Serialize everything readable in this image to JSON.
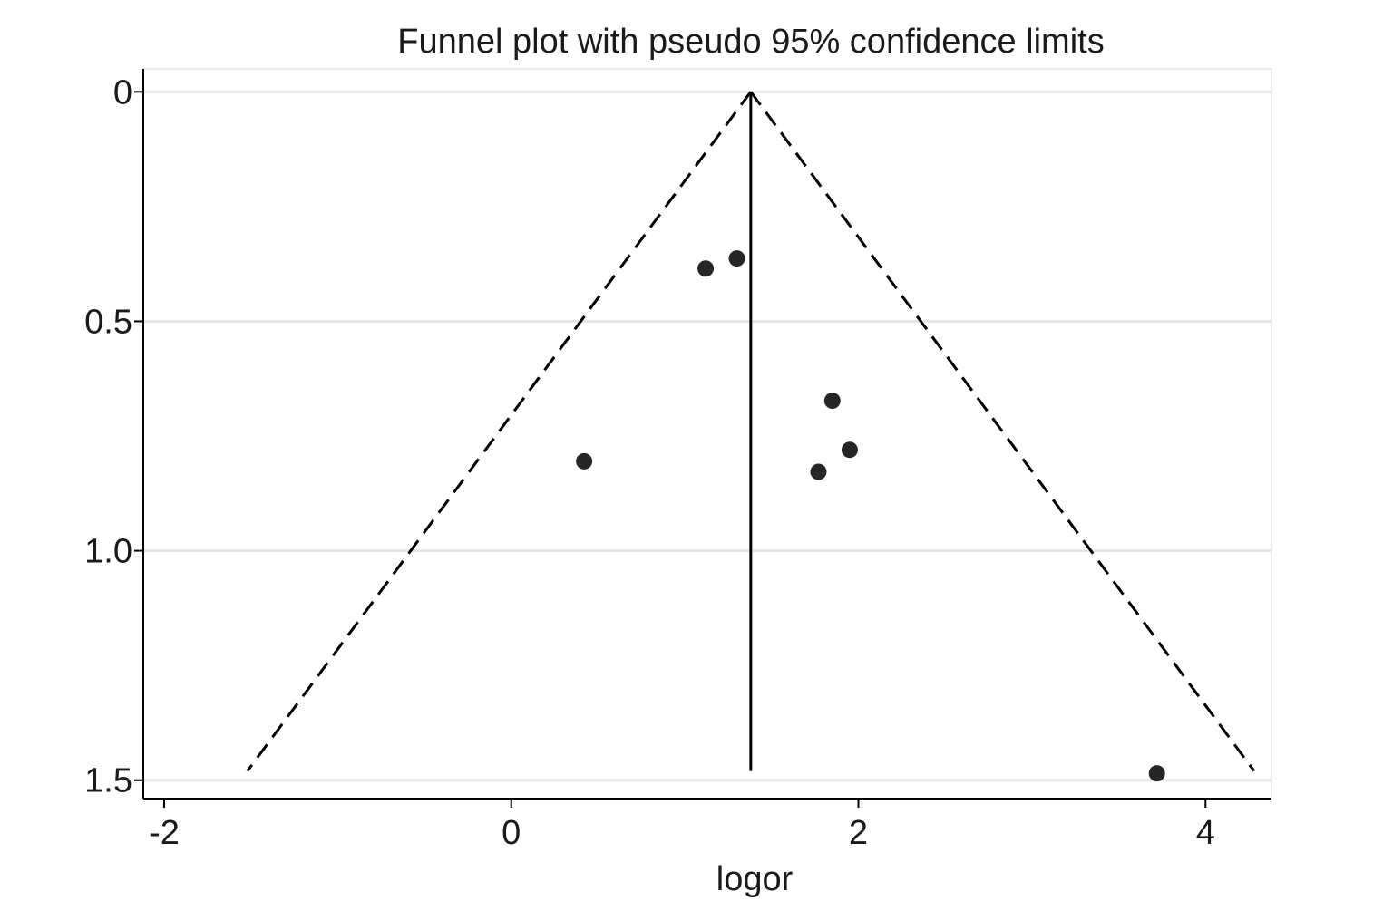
{
  "chart_data": {
    "type": "scatter",
    "title": "Funnel plot with pseudo 95% confidence limits",
    "xlabel": "logor",
    "ylabel": "",
    "xlim": [
      -2.12,
      4.38
    ],
    "ylim": [
      -0.05,
      1.54
    ],
    "y_reversed": true,
    "x_ticks": [
      -2,
      0,
      2,
      4
    ],
    "x_tick_labels": [
      "-2",
      "0",
      "2",
      "4"
    ],
    "y_ticks": [
      0,
      0.5,
      1.0,
      1.5
    ],
    "y_tick_labels": [
      "0",
      "0.5",
      "1.0",
      "1.5"
    ],
    "grid": "horizontal",
    "legend": "none",
    "pooled_estimate": 1.38,
    "confidence_limits": [
      {
        "name": "lower",
        "points": [
          [
            1.38,
            0
          ],
          [
            -1.52,
            1.48
          ]
        ]
      },
      {
        "name": "upper",
        "points": [
          [
            1.38,
            0
          ],
          [
            4.28,
            1.48
          ]
        ]
      }
    ],
    "reference_line": {
      "x": 1.38,
      "y": [
        0,
        1.48
      ]
    },
    "points": [
      {
        "x": 1.12,
        "y": 0.385
      },
      {
        "x": 1.3,
        "y": 0.363
      },
      {
        "x": 0.42,
        "y": 0.805
      },
      {
        "x": 1.85,
        "y": 0.673
      },
      {
        "x": 1.95,
        "y": 0.78
      },
      {
        "x": 1.77,
        "y": 0.828
      },
      {
        "x": 3.72,
        "y": 1.485
      }
    ],
    "colors": {
      "points": "#262626",
      "lines": "#000000",
      "grid": "#e6e6e6",
      "axis": "#000000"
    }
  }
}
